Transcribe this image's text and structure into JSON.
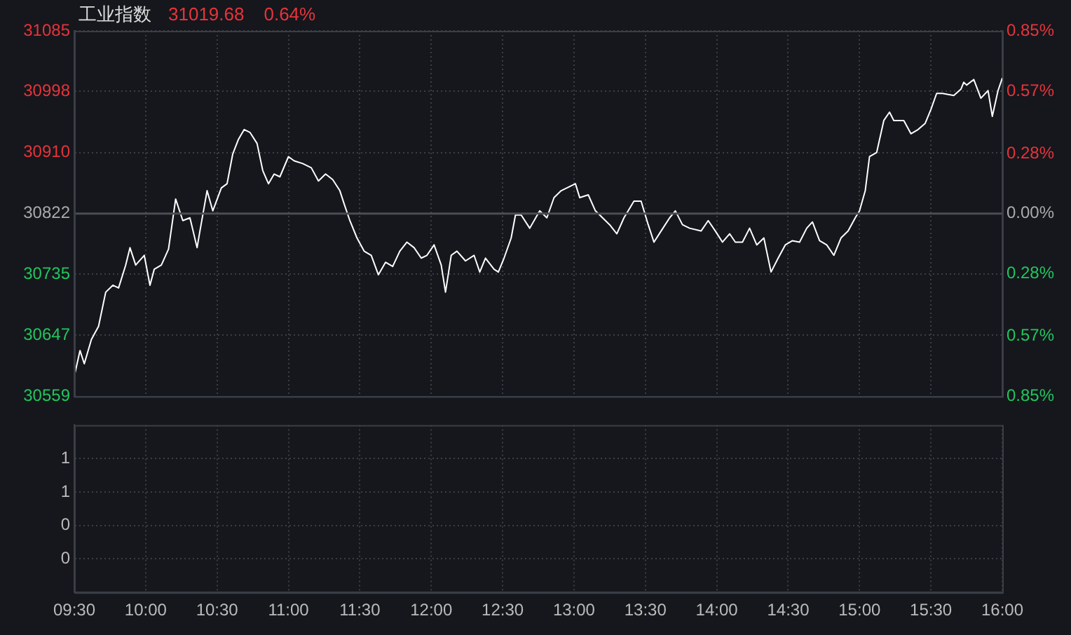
{
  "chart_data": [
    {
      "type": "line",
      "title": "工业指数",
      "annotations": [
        "31019.68",
        "0.64%"
      ],
      "color": "#ffffff",
      "x": [
        9.5,
        9.54,
        9.57,
        9.62,
        9.67,
        9.72,
        9.77,
        9.81,
        9.86,
        9.89,
        9.93,
        9.99,
        10.03,
        10.06,
        10.11,
        10.16,
        10.21,
        10.26,
        10.31,
        10.36,
        10.38,
        10.43,
        10.47,
        10.53,
        10.57,
        10.61,
        10.65,
        10.69,
        10.73,
        10.78,
        10.82,
        10.86,
        10.9,
        10.94,
        11.0,
        11.04,
        11.1,
        11.16,
        11.21,
        11.26,
        11.31,
        11.36,
        11.39,
        11.43,
        11.48,
        11.53,
        11.58,
        11.63,
        11.68,
        11.73,
        11.78,
        11.83,
        11.88,
        11.93,
        11.97,
        12.02,
        12.07,
        12.1,
        12.14,
        12.18,
        12.24,
        12.3,
        12.34,
        12.38,
        12.44,
        12.47,
        12.51,
        12.56,
        12.59,
        12.63,
        12.69,
        12.76,
        12.81,
        12.86,
        12.91,
        12.97,
        13.01,
        13.04,
        13.1,
        13.15,
        13.2,
        13.25,
        13.3,
        13.35,
        13.42,
        13.47,
        13.52,
        13.56,
        13.61,
        13.67,
        13.71,
        13.76,
        13.81,
        13.89,
        13.94,
        13.99,
        14.04,
        14.09,
        14.13,
        14.18,
        14.23,
        14.28,
        14.33,
        14.38,
        14.43,
        14.48,
        14.53,
        14.58,
        14.63,
        14.67,
        14.72,
        14.77,
        14.82,
        14.87,
        14.92,
        14.97,
        15.0,
        15.04,
        15.07,
        15.12,
        15.17,
        15.21,
        15.24,
        15.31,
        15.36,
        15.41,
        15.46,
        15.5,
        15.54,
        15.58,
        15.66,
        15.71,
        15.73,
        15.75,
        15.8,
        15.85,
        15.9,
        15.93,
        15.97,
        16.0
      ],
      "values": [
        30588,
        30625,
        30606,
        30641,
        30660,
        30709,
        30719,
        30715,
        30748,
        30773,
        30748,
        30762,
        30719,
        30742,
        30748,
        30771,
        30843,
        30812,
        30816,
        30773,
        30797,
        30855,
        30826,
        30859,
        30865,
        30908,
        30929,
        30943,
        30939,
        30923,
        30884,
        30865,
        30879,
        30875,
        30904,
        30898,
        30894,
        30888,
        30869,
        30879,
        30871,
        30855,
        30836,
        30812,
        30787,
        30768,
        30762,
        30734,
        30752,
        30746,
        30768,
        30781,
        30773,
        30758,
        30762,
        30777,
        30748,
        30709,
        30762,
        30768,
        30754,
        30762,
        30738,
        30758,
        30742,
        30738,
        30758,
        30787,
        30820,
        30820,
        30801,
        30826,
        30816,
        30845,
        30855,
        30861,
        30865,
        30845,
        30849,
        30826,
        30816,
        30806,
        30793,
        30816,
        30840,
        30840,
        30806,
        30781,
        30797,
        30816,
        30826,
        30806,
        30801,
        30797,
        30812,
        30797,
        30781,
        30793,
        30781,
        30781,
        30801,
        30777,
        30787,
        30738,
        30758,
        30777,
        30783,
        30781,
        30801,
        30810,
        30783,
        30777,
        30762,
        30787,
        30797,
        30816,
        30826,
        30855,
        30904,
        30910,
        30956,
        30968,
        30956,
        30956,
        30937,
        30943,
        30952,
        30972,
        30995,
        30995,
        30992,
        31001,
        31011,
        31007,
        31015,
        30988,
        30999,
        30962,
        30999,
        31017
      ],
      "xlim": [
        9.5,
        16
      ],
      "xticks": [
        {
          "value": 9.5,
          "label": null
        },
        {
          "value": 10,
          "label": null
        },
        {
          "value": 10.5,
          "label": null
        },
        {
          "value": 11,
          "label": null
        },
        {
          "value": 11.5,
          "label": null
        },
        {
          "value": 12,
          "label": null
        },
        {
          "value": 12.5,
          "label": null
        },
        {
          "value": 13,
          "label": null
        },
        {
          "value": 13.5,
          "label": null
        },
        {
          "value": 14,
          "label": null
        },
        {
          "value": 14.5,
          "label": null
        },
        {
          "value": 15,
          "label": null
        },
        {
          "value": 15.5,
          "label": null
        },
        {
          "value": 16,
          "label": null
        }
      ],
      "ylim": [
        30559,
        31085
      ],
      "yticks": [
        30559,
        30647,
        30735,
        30822,
        30910,
        30998,
        31085
      ],
      "y2lim": [
        -0.85,
        0.85
      ],
      "y2ticks": [
        {
          "value": -0.85,
          "label": "0.85%"
        },
        {
          "value": -0.57,
          "label": "0.57%"
        },
        {
          "value": -0.28,
          "label": "0.28%"
        },
        {
          "value": 0,
          "label": "0.00%"
        },
        {
          "value": 0.28,
          "label": "0.28%"
        },
        {
          "value": 0.57,
          "label": "0.57%"
        },
        {
          "value": 0.85,
          "label": "0.85%"
        }
      ],
      "ref_lines": [
        {
          "axis": "y",
          "value": 30822,
          "color": "#4a4d52"
        }
      ],
      "grid": true,
      "tick_labels": "y"
    },
    {
      "type": "line",
      "xlim": [
        9.5,
        16
      ],
      "xticks": [
        {
          "value": 9.5,
          "label": "09:30"
        },
        {
          "value": 10,
          "label": "10:00"
        },
        {
          "value": 10.5,
          "label": "10:30"
        },
        {
          "value": 11,
          "label": "11:00"
        },
        {
          "value": 11.5,
          "label": "11:30"
        },
        {
          "value": 12,
          "label": "12:00"
        },
        {
          "value": 12.5,
          "label": "12:30"
        },
        {
          "value": 13,
          "label": "13:00"
        },
        {
          "value": 13.5,
          "label": "13:30"
        },
        {
          "value": 14,
          "label": "14:00"
        },
        {
          "value": 14.5,
          "label": "14:30"
        },
        {
          "value": 15,
          "label": "15:00"
        },
        {
          "value": 15.5,
          "label": "15:30"
        },
        {
          "value": 16,
          "label": "16:00"
        }
      ],
      "ylim": [
        0,
        1
      ],
      "yticks": [
        {
          "value": 0.2,
          "label": "0"
        },
        {
          "value": 0.4,
          "label": "0"
        },
        {
          "value": 0.6,
          "label": "1"
        },
        {
          "value": 0.8,
          "label": "1"
        }
      ],
      "grid": true
    }
  ]
}
